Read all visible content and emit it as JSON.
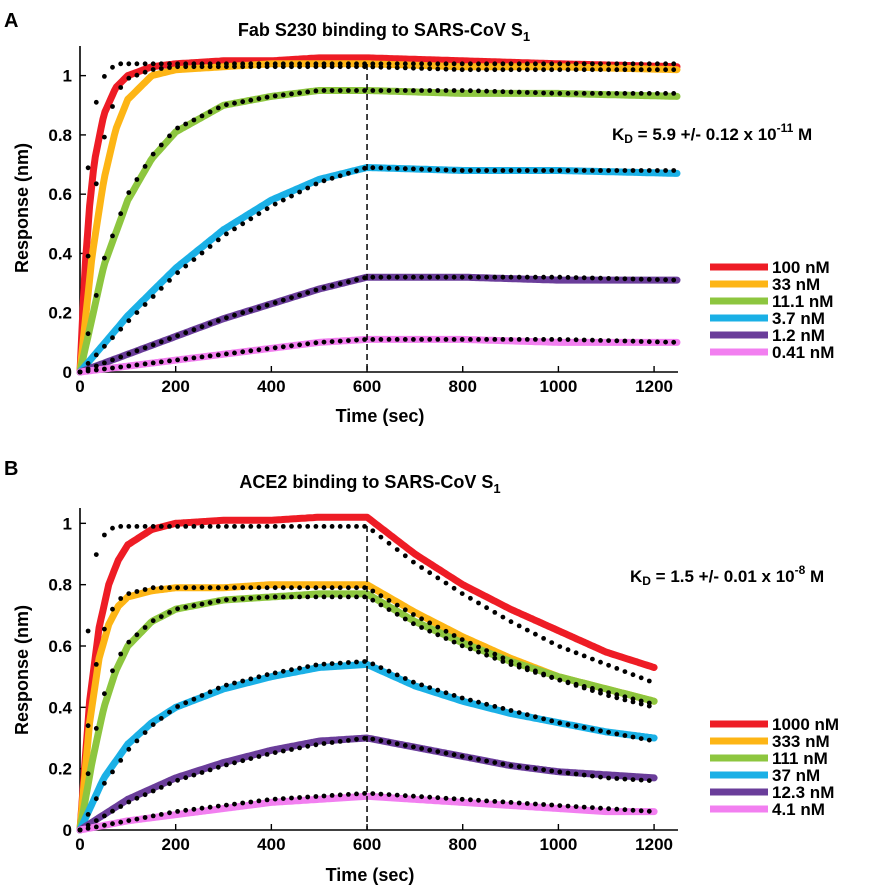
{
  "colors": {
    "red": "#ee1c25",
    "orange": "#fdb515",
    "green": "#8dc63f",
    "blue": "#1ab0e6",
    "purple": "#6a3d9a",
    "pink": "#f27ff0",
    "fit": "#000000"
  },
  "chart_data": [
    {
      "type": "line",
      "panel_label": "A",
      "title": "Fab S230 binding to SARS-CoV S",
      "title_subscript": "1",
      "xlabel": "Time (sec)",
      "ylabel": "Response (nm)",
      "xlim": [
        0,
        1250
      ],
      "ylim": [
        0,
        1.1
      ],
      "xticks": [
        0,
        200,
        400,
        600,
        800,
        1000,
        1200
      ],
      "yticks": [
        0,
        0.2,
        0.4,
        0.6,
        0.8,
        1
      ],
      "association_end": 600,
      "dissociation_dashed_line_x": 600,
      "grid": false,
      "legend_position": "right",
      "kd_annotation": {
        "prefix": "K",
        "subscript": "D",
        "text": " = 5.9 +/- 0.12 x 10",
        "exponent": "-11",
        "suffix": " M"
      },
      "series": [
        {
          "name": "100 nM",
          "color": "#ee1c25",
          "plateau": 1.05,
          "end": 1.03,
          "x": [
            0,
            10,
            20,
            30,
            50,
            75,
            100,
            150,
            200,
            300,
            400,
            500,
            600,
            800,
            1000,
            1250
          ],
          "y": [
            0,
            0.34,
            0.56,
            0.71,
            0.87,
            0.96,
            1.0,
            1.03,
            1.04,
            1.05,
            1.05,
            1.06,
            1.06,
            1.05,
            1.04,
            1.03
          ]
        },
        {
          "name": "33 nM",
          "color": "#fdb515",
          "plateau": 1.04,
          "end": 1.02,
          "x": [
            0,
            25,
            50,
            75,
            100,
            150,
            200,
            300,
            400,
            500,
            600,
            800,
            1000,
            1250
          ],
          "y": [
            0,
            0.39,
            0.65,
            0.82,
            0.92,
            1.0,
            1.02,
            1.03,
            1.04,
            1.04,
            1.04,
            1.03,
            1.03,
            1.02
          ]
        },
        {
          "name": "11.1 nM",
          "color": "#8dc63f",
          "plateau": 0.95,
          "end": 0.93,
          "x": [
            0,
            50,
            100,
            150,
            200,
            300,
            400,
            500,
            600,
            800,
            1000,
            1250
          ],
          "y": [
            0,
            0.36,
            0.58,
            0.72,
            0.81,
            0.9,
            0.93,
            0.95,
            0.95,
            0.94,
            0.94,
            0.93
          ]
        },
        {
          "name": "3.7 nM",
          "color": "#1ab0e6",
          "plateau": 0.69,
          "end": 0.67,
          "x": [
            0,
            100,
            200,
            300,
            400,
            500,
            600,
            800,
            1000,
            1250
          ],
          "y": [
            0,
            0.19,
            0.35,
            0.48,
            0.58,
            0.65,
            0.69,
            0.68,
            0.68,
            0.67
          ]
        },
        {
          "name": "1.2 nM",
          "color": "#6a3d9a",
          "plateau": 0.32,
          "end": 0.31,
          "x": [
            0,
            100,
            200,
            300,
            400,
            500,
            600,
            800,
            1000,
            1250
          ],
          "y": [
            0,
            0.06,
            0.12,
            0.18,
            0.23,
            0.28,
            0.32,
            0.32,
            0.31,
            0.31
          ]
        },
        {
          "name": "0.41 nM",
          "color": "#f27ff0",
          "plateau": 0.11,
          "end": 0.1,
          "x": [
            0,
            100,
            200,
            300,
            400,
            500,
            600,
            800,
            1000,
            1250
          ],
          "y": [
            0,
            0.02,
            0.04,
            0.06,
            0.08,
            0.1,
            0.11,
            0.11,
            0.1,
            0.1
          ]
        }
      ],
      "fit_points": [
        {
          "x": [
            0,
            10,
            20,
            40,
            60,
            80,
            100,
            200,
            400,
            600,
            800,
            1000,
            1250
          ],
          "y": [
            0,
            0.5,
            0.77,
            0.97,
            1.02,
            1.04,
            1.04,
            1.04,
            1.04,
            1.04,
            1.04,
            1.04,
            1.04
          ]
        },
        {
          "x": [
            0,
            20,
            40,
            60,
            80,
            100,
            150,
            200,
            400,
            600,
            800,
            1000,
            1250
          ],
          "y": [
            0,
            0.46,
            0.71,
            0.86,
            0.95,
            0.99,
            1.02,
            1.03,
            1.03,
            1.03,
            1.02,
            1.02,
            1.02
          ]
        },
        {
          "x": [
            0,
            50,
            100,
            150,
            200,
            300,
            400,
            500,
            600,
            800,
            1000,
            1250
          ],
          "y": [
            0,
            0.38,
            0.6,
            0.73,
            0.82,
            0.9,
            0.93,
            0.95,
            0.95,
            0.95,
            0.94,
            0.94
          ]
        },
        {
          "x": [
            0,
            100,
            200,
            300,
            400,
            500,
            600,
            800,
            1000,
            1250
          ],
          "y": [
            0,
            0.17,
            0.33,
            0.46,
            0.56,
            0.64,
            0.69,
            0.68,
            0.68,
            0.68
          ]
        },
        {
          "x": [
            0,
            100,
            200,
            300,
            400,
            500,
            600,
            800,
            1000,
            1250
          ],
          "y": [
            0,
            0.06,
            0.12,
            0.18,
            0.23,
            0.28,
            0.32,
            0.32,
            0.32,
            0.31
          ]
        },
        {
          "x": [
            0,
            100,
            200,
            300,
            400,
            500,
            600,
            800,
            1000,
            1250
          ],
          "y": [
            0,
            0.02,
            0.04,
            0.06,
            0.08,
            0.1,
            0.11,
            0.11,
            0.11,
            0.1
          ]
        }
      ]
    },
    {
      "type": "line",
      "panel_label": "B",
      "title": "ACE2 binding to SARS-CoV S",
      "title_subscript": "1",
      "xlabel": "Time (sec)",
      "ylabel": "Response (nm)",
      "xlim": [
        0,
        1250
      ],
      "ylim": [
        0,
        1.05
      ],
      "xticks": [
        0,
        200,
        400,
        600,
        800,
        1000,
        1200
      ],
      "yticks": [
        0,
        0.2,
        0.4,
        0.6,
        0.8,
        1
      ],
      "association_end": 600,
      "dissociation_dashed_line_x": 600,
      "grid": false,
      "legend_position": "right",
      "kd_annotation": {
        "prefix": "K",
        "subscript": "D",
        "text": " = 1.5 +/- 0.01 x 10",
        "exponent": "-8",
        "suffix": " M"
      },
      "series": [
        {
          "name": "1000 nM",
          "color": "#ee1c25",
          "x": [
            0,
            20,
            40,
            60,
            80,
            100,
            150,
            200,
            300,
            400,
            500,
            600,
            700,
            800,
            900,
            1000,
            1100,
            1200
          ],
          "y": [
            0,
            0.42,
            0.66,
            0.8,
            0.88,
            0.93,
            0.98,
            1.0,
            1.01,
            1.01,
            1.02,
            1.02,
            0.9,
            0.8,
            0.72,
            0.65,
            0.58,
            0.53
          ]
        },
        {
          "name": "333 nM",
          "color": "#fdb515",
          "x": [
            0,
            20,
            40,
            60,
            80,
            100,
            150,
            200,
            300,
            400,
            500,
            600,
            700,
            800,
            900,
            1000,
            1100,
            1200
          ],
          "y": [
            0,
            0.35,
            0.56,
            0.67,
            0.73,
            0.76,
            0.78,
            0.79,
            0.79,
            0.8,
            0.8,
            0.8,
            0.71,
            0.63,
            0.56,
            0.5,
            0.46,
            0.42
          ]
        },
        {
          "name": "111 nM",
          "color": "#8dc63f",
          "x": [
            0,
            25,
            50,
            75,
            100,
            150,
            200,
            300,
            400,
            500,
            600,
            700,
            800,
            900,
            1000,
            1100,
            1200
          ],
          "y": [
            0,
            0.22,
            0.4,
            0.52,
            0.6,
            0.68,
            0.72,
            0.75,
            0.76,
            0.77,
            0.77,
            0.68,
            0.61,
            0.55,
            0.5,
            0.46,
            0.42
          ]
        },
        {
          "name": "37 nM",
          "color": "#1ab0e6",
          "x": [
            0,
            50,
            100,
            150,
            200,
            300,
            400,
            500,
            600,
            700,
            800,
            900,
            1000,
            1100,
            1200
          ],
          "y": [
            0,
            0.17,
            0.28,
            0.35,
            0.4,
            0.46,
            0.5,
            0.53,
            0.54,
            0.47,
            0.42,
            0.38,
            0.35,
            0.32,
            0.3
          ]
        },
        {
          "name": "12.3 nM",
          "color": "#6a3d9a",
          "x": [
            0,
            100,
            200,
            300,
            400,
            500,
            600,
            700,
            800,
            900,
            1000,
            1100,
            1200
          ],
          "y": [
            0,
            0.1,
            0.17,
            0.22,
            0.26,
            0.29,
            0.3,
            0.27,
            0.24,
            0.21,
            0.19,
            0.18,
            0.17
          ]
        },
        {
          "name": "4.1 nM",
          "color": "#f27ff0",
          "x": [
            0,
            100,
            200,
            300,
            400,
            500,
            600,
            700,
            800,
            900,
            1000,
            1100,
            1200
          ],
          "y": [
            0,
            0.03,
            0.05,
            0.07,
            0.09,
            0.1,
            0.11,
            0.1,
            0.09,
            0.08,
            0.07,
            0.06,
            0.06
          ]
        }
      ],
      "fit_points": [
        {
          "x": [
            0,
            10,
            20,
            30,
            40,
            60,
            80,
            100,
            200,
            400,
            600,
            700,
            800,
            900,
            1000,
            1100,
            1200
          ],
          "y": [
            0,
            0.46,
            0.73,
            0.87,
            0.94,
            0.98,
            0.99,
            0.99,
            0.99,
            0.99,
            0.99,
            0.87,
            0.77,
            0.68,
            0.6,
            0.54,
            0.48
          ]
        },
        {
          "x": [
            0,
            20,
            40,
            60,
            80,
            100,
            150,
            200,
            400,
            600,
            700,
            800,
            900,
            1000,
            1100,
            1200
          ],
          "y": [
            0,
            0.4,
            0.6,
            0.7,
            0.75,
            0.77,
            0.79,
            0.79,
            0.79,
            0.79,
            0.7,
            0.62,
            0.55,
            0.49,
            0.44,
            0.4
          ]
        },
        {
          "x": [
            0,
            25,
            50,
            75,
            100,
            150,
            200,
            300,
            400,
            500,
            600,
            700,
            800,
            900,
            1000,
            1100,
            1200
          ],
          "y": [
            0,
            0.27,
            0.44,
            0.55,
            0.61,
            0.68,
            0.72,
            0.75,
            0.76,
            0.76,
            0.76,
            0.67,
            0.6,
            0.54,
            0.49,
            0.45,
            0.41
          ]
        },
        {
          "x": [
            0,
            50,
            100,
            150,
            200,
            300,
            400,
            500,
            600,
            700,
            800,
            900,
            1000,
            1100,
            1200
          ],
          "y": [
            0,
            0.15,
            0.26,
            0.34,
            0.4,
            0.47,
            0.51,
            0.54,
            0.55,
            0.48,
            0.43,
            0.39,
            0.35,
            0.32,
            0.29
          ]
        },
        {
          "x": [
            0,
            100,
            200,
            300,
            400,
            500,
            600,
            700,
            800,
            900,
            1000,
            1100,
            1200
          ],
          "y": [
            0,
            0.09,
            0.16,
            0.21,
            0.25,
            0.28,
            0.3,
            0.27,
            0.24,
            0.21,
            0.19,
            0.17,
            0.16
          ]
        },
        {
          "x": [
            0,
            100,
            200,
            300,
            400,
            500,
            600,
            700,
            800,
            900,
            1000,
            1100,
            1200
          ],
          "y": [
            0,
            0.03,
            0.06,
            0.08,
            0.1,
            0.11,
            0.12,
            0.11,
            0.1,
            0.09,
            0.08,
            0.07,
            0.06
          ]
        }
      ]
    }
  ]
}
